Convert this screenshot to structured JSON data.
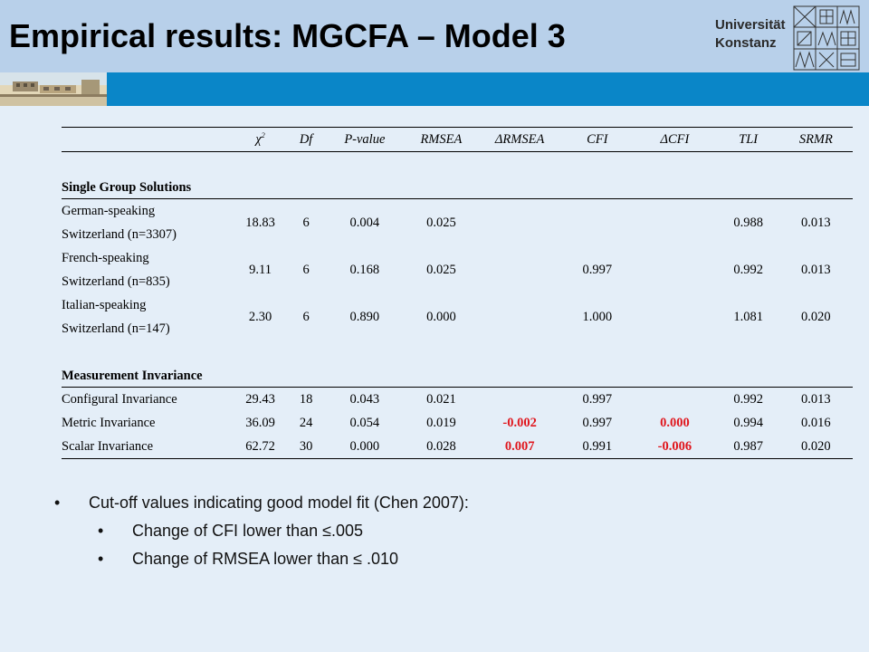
{
  "header": {
    "title": "Empirical results: MGCFA – Model 3",
    "logo_line1": "Universität",
    "logo_line2": "Konstanz"
  },
  "table": {
    "columns": [
      "χ2",
      "Df",
      "P-value",
      "RMSEA",
      "ΔRMSEA",
      "CFI",
      "ΔCFI",
      "TLI",
      "SRMR"
    ],
    "sections": {
      "single_group": "Single Group Solutions",
      "measurement": "Measurement Invariance"
    },
    "single_group_rows": [
      {
        "label_line1": "German-speaking",
        "label_line2": "Switzerland (n=3307)",
        "chi2": "18.83",
        "df": "6",
        "p": "0.004",
        "rmsea": "0.025",
        "d_rmsea": "",
        "cfi": "",
        "d_cfi": "",
        "tli": "0.988",
        "srmr": "0.013"
      },
      {
        "label_line1": "French-speaking",
        "label_line2": "Switzerland (n=835)",
        "chi2": "9.11",
        "df": "6",
        "p": "0.168",
        "rmsea": "0.025",
        "d_rmsea": "",
        "cfi": "0.997",
        "d_cfi": "",
        "tli": "0.992",
        "srmr": "0.013"
      },
      {
        "label_line1": "Italian-speaking",
        "label_line2": "Switzerland (n=147)",
        "chi2": "2.30",
        "df": "6",
        "p": "0.890",
        "rmsea": "0.000",
        "d_rmsea": "",
        "cfi": "1.000",
        "d_cfi": "",
        "tli": "1.081",
        "srmr": "0.020"
      }
    ],
    "invariance_rows": [
      {
        "label": "Configural Invariance",
        "chi2": "29.43",
        "df": "18",
        "p": "0.043",
        "rmsea": "0.021",
        "d_rmsea": "",
        "cfi": "0.997",
        "d_cfi": "",
        "tli": "0.992",
        "srmr": "0.013"
      },
      {
        "label": "Metric Invariance",
        "chi2": "36.09",
        "df": "24",
        "p": "0.054",
        "rmsea": "0.019",
        "d_rmsea": "-0.002",
        "cfi": "0.997",
        "d_cfi": "0.000",
        "tli": "0.994",
        "srmr": "0.016"
      },
      {
        "label": "Scalar Invariance",
        "chi2": "62.72",
        "df": "30",
        "p": "0.000",
        "rmsea": "0.028",
        "d_rmsea": "0.007",
        "cfi": "0.991",
        "d_cfi": "-0.006",
        "tli": "0.987",
        "srmr": "0.020"
      }
    ],
    "highlight_color": "#e0161d"
  },
  "bullets": {
    "main": "Cut-off values indicating good model fit (Chen 2007):",
    "sub1": "Change of CFI lower than ≤.005",
    "sub2": "Change of RMSEA lower than ≤ .010",
    "marker": "•"
  },
  "colors": {
    "title_band": "#b8d0ea",
    "blue_band": "#0a86c8",
    "background": "#e4eef8"
  }
}
